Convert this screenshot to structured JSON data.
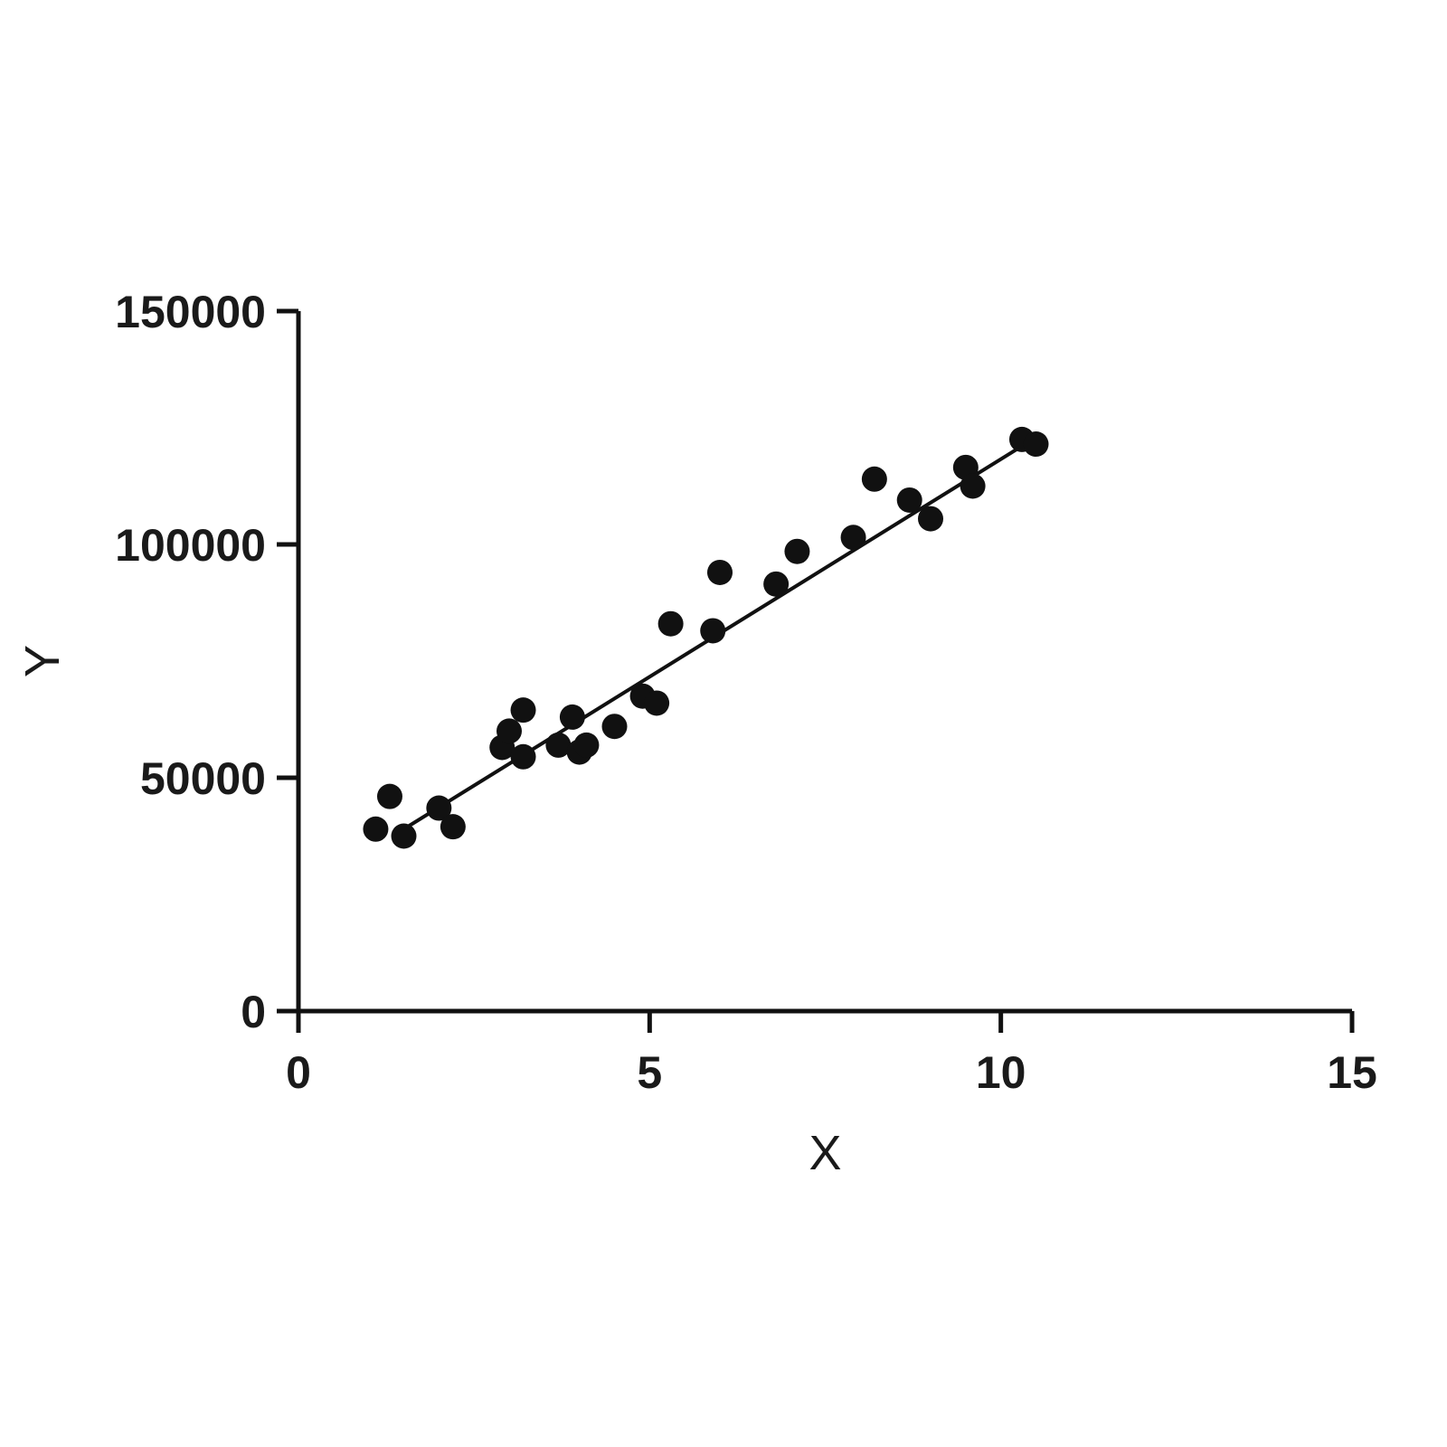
{
  "chart_data": {
    "type": "scatter",
    "title": "",
    "xlabel": "X",
    "ylabel": "Y",
    "xlim": [
      0,
      15
    ],
    "ylim": [
      0,
      150000
    ],
    "xticks": [
      0,
      5,
      10,
      15
    ],
    "yticks": [
      0,
      50000,
      100000,
      150000
    ],
    "xtick_labels": [
      "0",
      "5",
      "10",
      "15"
    ],
    "ytick_labels": [
      "0",
      "50000",
      "100000",
      "150000"
    ],
    "grid": false,
    "legend": "none",
    "marker_color": "#111111",
    "series": [
      {
        "points": [
          {
            "x": 1.1,
            "y": 39000
          },
          {
            "x": 1.3,
            "y": 46000
          },
          {
            "x": 1.5,
            "y": 37500
          },
          {
            "x": 2.0,
            "y": 43500
          },
          {
            "x": 2.2,
            "y": 39500
          },
          {
            "x": 2.9,
            "y": 56500
          },
          {
            "x": 3.0,
            "y": 60000
          },
          {
            "x": 3.2,
            "y": 54500
          },
          {
            "x": 3.2,
            "y": 64500
          },
          {
            "x": 3.7,
            "y": 57000
          },
          {
            "x": 3.9,
            "y": 63000
          },
          {
            "x": 4.0,
            "y": 55500
          },
          {
            "x": 4.1,
            "y": 57000
          },
          {
            "x": 4.5,
            "y": 61000
          },
          {
            "x": 4.9,
            "y": 67500
          },
          {
            "x": 5.1,
            "y": 66000
          },
          {
            "x": 5.3,
            "y": 83000
          },
          {
            "x": 5.9,
            "y": 81500
          },
          {
            "x": 6.0,
            "y": 94000
          },
          {
            "x": 6.8,
            "y": 91500
          },
          {
            "x": 7.1,
            "y": 98500
          },
          {
            "x": 7.9,
            "y": 101500
          },
          {
            "x": 8.2,
            "y": 114000
          },
          {
            "x": 8.7,
            "y": 109500
          },
          {
            "x": 9.0,
            "y": 105500
          },
          {
            "x": 9.5,
            "y": 116500
          },
          {
            "x": 9.6,
            "y": 112500
          },
          {
            "x": 10.3,
            "y": 122500
          },
          {
            "x": 10.5,
            "y": 121500
          }
        ]
      }
    ],
    "fit_line": {
      "x": [
        1.5,
        10.4
      ],
      "y": [
        39000,
        122000
      ]
    }
  }
}
